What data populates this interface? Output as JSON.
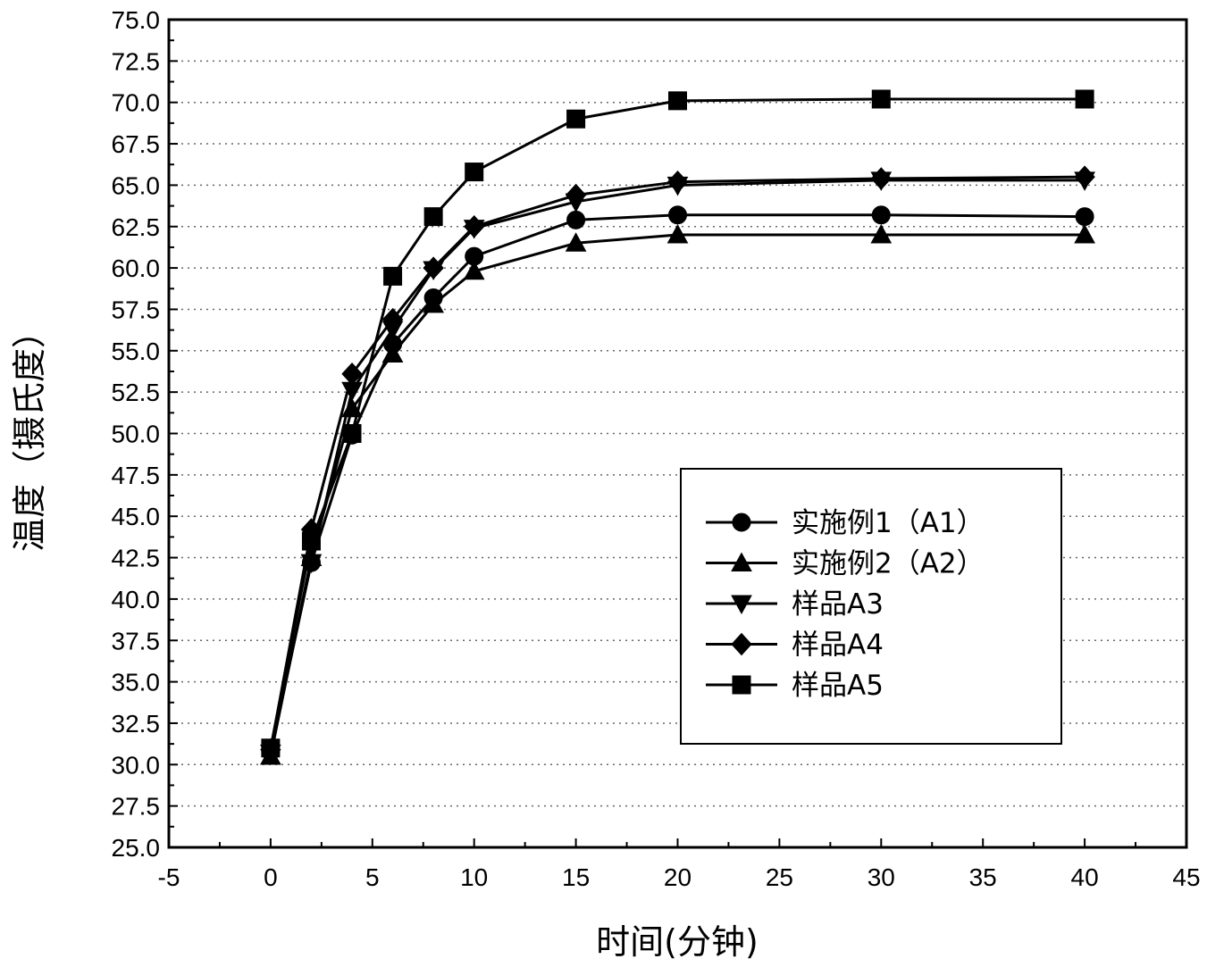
{
  "chart_data": {
    "type": "line",
    "xlabel": "时间(分钟)",
    "ylabel": "温度（摄氏度）",
    "xlim": [
      -5,
      45
    ],
    "ylim": [
      25,
      75
    ],
    "x_ticks": [
      "-5",
      "0",
      "5",
      "10",
      "15",
      "20",
      "25",
      "30",
      "35",
      "40",
      "45"
    ],
    "x_tick_values": [
      -5,
      0,
      5,
      10,
      15,
      20,
      25,
      30,
      35,
      40,
      45
    ],
    "y_ticks": [
      "25.0",
      "27.5",
      "30.0",
      "32.5",
      "35.0",
      "37.5",
      "40.0",
      "42.5",
      "45.0",
      "47.5",
      "50.0",
      "52.5",
      "55.0",
      "57.5",
      "60.0",
      "62.5",
      "65.0",
      "67.5",
      "70.0",
      "72.5",
      "75.0"
    ],
    "y_tick_values": [
      25,
      27.5,
      30,
      32.5,
      35,
      37.5,
      40,
      42.5,
      45,
      47.5,
      50,
      52.5,
      55,
      57.5,
      60,
      62.5,
      65,
      67.5,
      70,
      72.5,
      75
    ],
    "grid": "horizontal dotted",
    "legend_position": "lower-right",
    "x": [
      0,
      2,
      4,
      6,
      8,
      10,
      15,
      20,
      30,
      40
    ],
    "series": [
      {
        "name": "实施例1（A1）",
        "marker": "circle",
        "values": [
          30.8,
          42.2,
          49.9,
          55.4,
          58.2,
          60.7,
          62.9,
          63.2,
          63.2,
          63.1
        ]
      },
      {
        "name": "实施例2（A2）",
        "marker": "triangle-up",
        "values": [
          30.5,
          42.5,
          51.5,
          54.8,
          57.8,
          59.8,
          61.5,
          62.0,
          62.0,
          62.0
        ]
      },
      {
        "name": "样品A3",
        "marker": "triangle-down",
        "values": [
          30.7,
          42.2,
          52.6,
          56.3,
          59.9,
          62.4,
          64.0,
          65.0,
          65.3,
          65.3
        ]
      },
      {
        "name": "样品A4",
        "marker": "diamond",
        "values": [
          30.9,
          44.2,
          53.6,
          56.9,
          60.0,
          62.5,
          64.4,
          65.2,
          65.4,
          65.5
        ]
      },
      {
        "name": "样品A5",
        "marker": "square",
        "values": [
          31.0,
          43.5,
          50.0,
          59.5,
          63.1,
          65.8,
          69.0,
          70.1,
          70.2,
          70.2
        ]
      }
    ],
    "colors": {
      "line": "#000000",
      "grid": "#666666",
      "background": "#ffffff"
    }
  }
}
